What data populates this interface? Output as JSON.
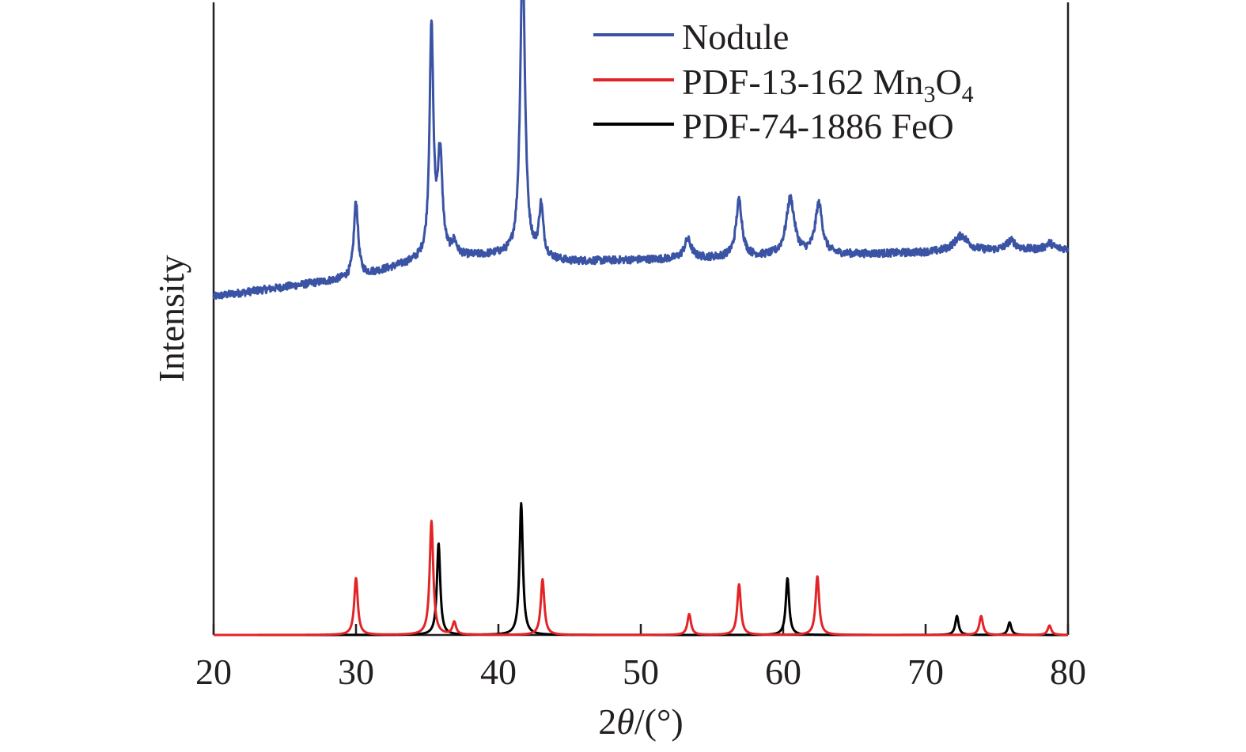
{
  "chart_data": {
    "type": "line",
    "title": "",
    "xlabel_prefix": "2",
    "xlabel_var": "θ",
    "xlabel_suffix": "/(°)",
    "ylabel": "Intensity",
    "xlim": [
      20,
      80
    ],
    "xticks": [
      "20",
      "30",
      "40",
      "50",
      "60",
      "70",
      "80"
    ],
    "xtick_values": [
      20,
      30,
      40,
      50,
      60,
      70,
      80
    ],
    "yticks": [],
    "grid": false,
    "legend_position": "top-right",
    "series": [
      {
        "name": "Nodule",
        "color": "#3a53a4",
        "baseline": [
          [
            20,
            0.535
          ],
          [
            30,
            0.565
          ],
          [
            35,
            0.595
          ],
          [
            40,
            0.6
          ],
          [
            45,
            0.59
          ],
          [
            80,
            0.61
          ]
        ],
        "peaks": [
          {
            "x": 30.0,
            "height": 0.12,
            "width": 0.18
          },
          {
            "x": 35.3,
            "height": 0.36,
            "width": 0.16
          },
          {
            "x": 35.9,
            "height": 0.16,
            "width": 0.2
          },
          {
            "x": 36.9,
            "height": 0.02,
            "width": 0.2
          },
          {
            "x": 41.7,
            "height": 0.48,
            "width": 0.2
          },
          {
            "x": 43.0,
            "height": 0.08,
            "width": 0.18
          },
          {
            "x": 53.3,
            "height": 0.03,
            "width": 0.3
          },
          {
            "x": 56.9,
            "height": 0.09,
            "width": 0.25
          },
          {
            "x": 60.5,
            "height": 0.09,
            "width": 0.35
          },
          {
            "x": 62.5,
            "height": 0.08,
            "width": 0.3
          },
          {
            "x": 72.5,
            "height": 0.025,
            "width": 0.6
          },
          {
            "x": 76.0,
            "height": 0.015,
            "width": 0.4
          },
          {
            "x": 78.7,
            "height": 0.01,
            "width": 0.3
          }
        ]
      },
      {
        "name": "PDF-13-162 Mn",
        "name_sub1": "3",
        "name_mid": "O",
        "name_sub2": "4",
        "color": "#e32427",
        "baseline_value": 0.0,
        "peaks": [
          {
            "x": 30.0,
            "height": 0.09,
            "width": 0.15
          },
          {
            "x": 35.3,
            "height": 0.18,
            "width": 0.15
          },
          {
            "x": 36.9,
            "height": 0.02,
            "width": 0.15
          },
          {
            "x": 43.1,
            "height": 0.088,
            "width": 0.15
          },
          {
            "x": 53.4,
            "height": 0.033,
            "width": 0.15
          },
          {
            "x": 56.9,
            "height": 0.08,
            "width": 0.15
          },
          {
            "x": 62.4,
            "height": 0.093,
            "width": 0.15
          },
          {
            "x": 73.9,
            "height": 0.03,
            "width": 0.15
          },
          {
            "x": 78.7,
            "height": 0.015,
            "width": 0.15
          }
        ]
      },
      {
        "name": "PDF-74-1886 FeO",
        "color": "#000000",
        "baseline_value": 0.0,
        "peaks": [
          {
            "x": 35.8,
            "height": 0.145,
            "width": 0.14
          },
          {
            "x": 41.6,
            "height": 0.208,
            "width": 0.14
          },
          {
            "x": 60.3,
            "height": 0.09,
            "width": 0.14
          },
          {
            "x": 72.2,
            "height": 0.03,
            "width": 0.14
          },
          {
            "x": 75.9,
            "height": 0.02,
            "width": 0.14
          }
        ]
      }
    ]
  }
}
